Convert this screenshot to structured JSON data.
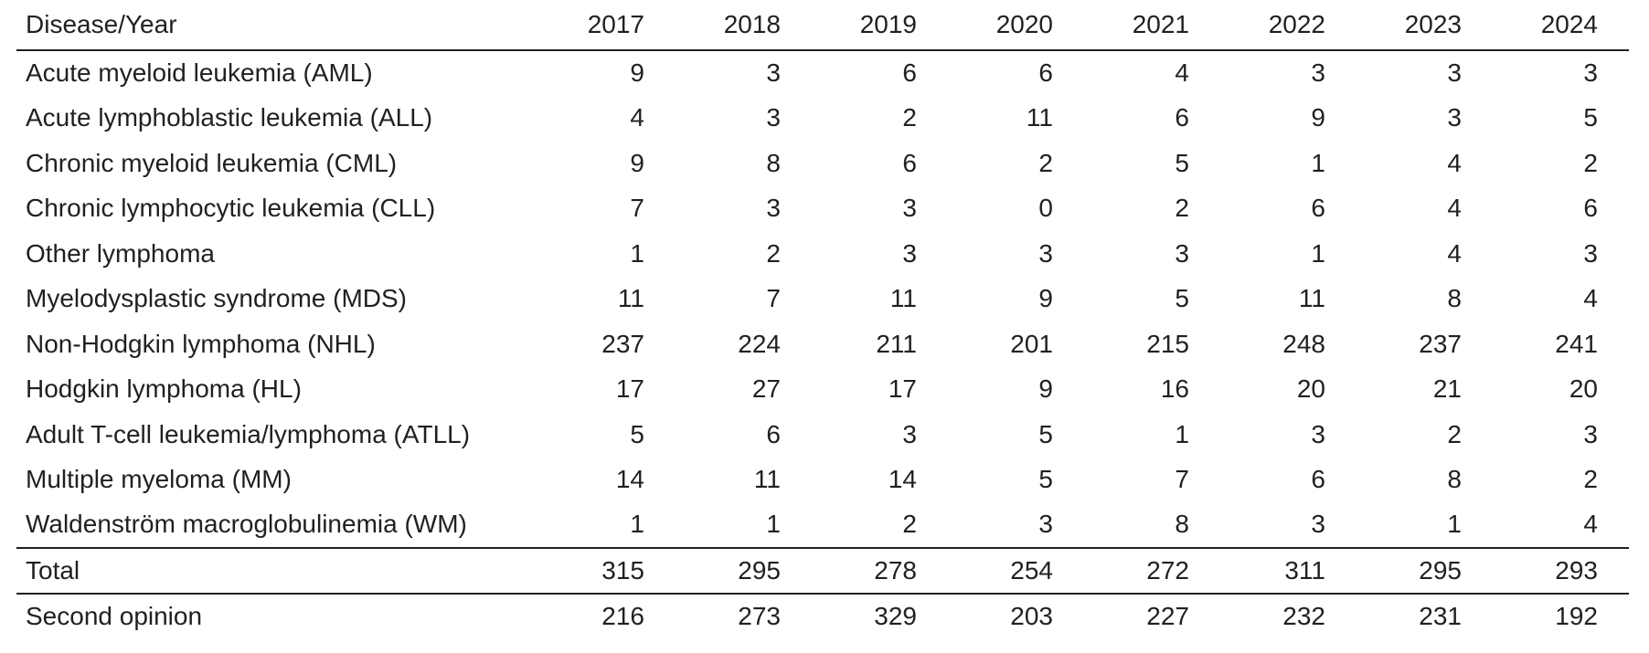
{
  "table": {
    "columns": [
      "Disease/Year",
      "2017",
      "2018",
      "2019",
      "2020",
      "2021",
      "2022",
      "2023",
      "2024"
    ],
    "rows": [
      {
        "label": "Acute myeloid leukemia (AML)",
        "values": [
          "9",
          "3",
          "6",
          "6",
          "4",
          "3",
          "3",
          "3"
        ],
        "type": "disease"
      },
      {
        "label": "Acute lymphoblastic leukemia (ALL)",
        "values": [
          "4",
          "3",
          "2",
          "11",
          "6",
          "9",
          "3",
          "5"
        ],
        "type": "disease"
      },
      {
        "label": "Chronic myeloid leukemia (CML)",
        "values": [
          "9",
          "8",
          "6",
          "2",
          "5",
          "1",
          "4",
          "2"
        ],
        "type": "disease"
      },
      {
        "label": "Chronic lymphocytic leukemia (CLL)",
        "values": [
          "7",
          "3",
          "3",
          "0",
          "2",
          "6",
          "4",
          "6"
        ],
        "type": "disease"
      },
      {
        "label": "Other lymphoma",
        "values": [
          "1",
          "2",
          "3",
          "3",
          "3",
          "1",
          "4",
          "3"
        ],
        "type": "disease"
      },
      {
        "label": "Myelodysplastic syndrome (MDS)",
        "values": [
          "11",
          "7",
          "11",
          "9",
          "5",
          "11",
          "8",
          "4"
        ],
        "type": "disease"
      },
      {
        "label": "Non-Hodgkin lymphoma (NHL)",
        "values": [
          "237",
          "224",
          "211",
          "201",
          "215",
          "248",
          "237",
          "241"
        ],
        "type": "disease"
      },
      {
        "label": "Hodgkin lymphoma (HL)",
        "values": [
          "17",
          "27",
          "17",
          "9",
          "16",
          "20",
          "21",
          "20"
        ],
        "type": "disease"
      },
      {
        "label": "Adult T-cell leukemia/lymphoma (ATLL)",
        "values": [
          "5",
          "6",
          "3",
          "5",
          "1",
          "3",
          "2",
          "3"
        ],
        "type": "disease"
      },
      {
        "label": "Multiple myeloma (MM)",
        "values": [
          "14",
          "11",
          "14",
          "5",
          "7",
          "6",
          "8",
          "2"
        ],
        "type": "disease"
      },
      {
        "label": "Waldenström macroglobulinemia (WM)",
        "values": [
          "1",
          "1",
          "2",
          "3",
          "8",
          "3",
          "1",
          "4"
        ],
        "type": "disease",
        "last_in_group": true
      },
      {
        "label": "Total",
        "values": [
          "315",
          "295",
          "278",
          "254",
          "272",
          "311",
          "295",
          "293"
        ],
        "type": "total"
      },
      {
        "label": "Second opinion",
        "values": [
          "216",
          "273",
          "329",
          "203",
          "227",
          "232",
          "231",
          "192"
        ],
        "type": "second_opinion"
      }
    ]
  },
  "chart_data": {
    "type": "table",
    "title": "Disease/Year",
    "categories": [
      "2017",
      "2018",
      "2019",
      "2020",
      "2021",
      "2022",
      "2023",
      "2024"
    ],
    "series": [
      {
        "name": "Acute myeloid leukemia (AML)",
        "values": [
          9,
          3,
          6,
          6,
          4,
          3,
          3,
          3
        ]
      },
      {
        "name": "Acute lymphoblastic leukemia (ALL)",
        "values": [
          4,
          3,
          2,
          11,
          6,
          9,
          3,
          5
        ]
      },
      {
        "name": "Chronic myeloid leukemia (CML)",
        "values": [
          9,
          8,
          6,
          2,
          5,
          1,
          4,
          2
        ]
      },
      {
        "name": "Chronic lymphocytic leukemia (CLL)",
        "values": [
          7,
          3,
          3,
          0,
          2,
          6,
          4,
          6
        ]
      },
      {
        "name": "Other lymphoma",
        "values": [
          1,
          2,
          3,
          3,
          3,
          1,
          4,
          3
        ]
      },
      {
        "name": "Myelodysplastic syndrome (MDS)",
        "values": [
          11,
          7,
          11,
          9,
          5,
          11,
          8,
          4
        ]
      },
      {
        "name": "Non-Hodgkin lymphoma (NHL)",
        "values": [
          237,
          224,
          211,
          201,
          215,
          248,
          237,
          241
        ]
      },
      {
        "name": "Hodgkin lymphoma (HL)",
        "values": [
          17,
          27,
          17,
          9,
          16,
          20,
          21,
          20
        ]
      },
      {
        "name": "Adult T-cell leukemia/lymphoma (ATLL)",
        "values": [
          5,
          6,
          3,
          5,
          1,
          3,
          2,
          3
        ]
      },
      {
        "name": "Multiple myeloma (MM)",
        "values": [
          14,
          11,
          14,
          5,
          7,
          6,
          8,
          2
        ]
      },
      {
        "name": "Waldenström macroglobulinemia (WM)",
        "values": [
          1,
          1,
          2,
          3,
          8,
          3,
          1,
          4
        ]
      },
      {
        "name": "Total",
        "values": [
          315,
          295,
          278,
          254,
          272,
          311,
          295,
          293
        ]
      },
      {
        "name": "Second opinion",
        "values": [
          216,
          273,
          329,
          203,
          227,
          232,
          231,
          192
        ]
      }
    ]
  },
  "colors": {
    "text": "#231f20",
    "rule": "#231f20",
    "background": "#ffffff"
  }
}
